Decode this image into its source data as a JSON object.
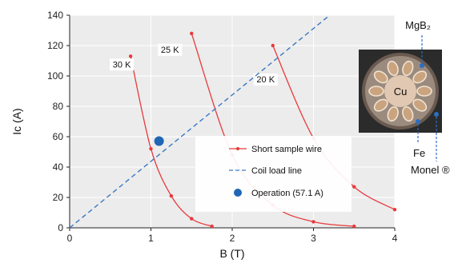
{
  "chart_data": {
    "type": "line",
    "xlabel": "B (T)",
    "ylabel": "Ic (A)",
    "xlim": [
      0,
      4
    ],
    "ylim": [
      0,
      140
    ],
    "x_ticks": [
      "0",
      "1",
      "2",
      "3",
      "4"
    ],
    "y_ticks": [
      "0",
      "20",
      "40",
      "60",
      "80",
      "100",
      "120",
      "140"
    ],
    "grid": true,
    "legend_position": "bottom-right",
    "series": [
      {
        "name": "Short sample wire",
        "label": "30 K",
        "role": "short-sample",
        "x": [
          0.75,
          1.0,
          1.25,
          1.5,
          1.75
        ],
        "y": [
          113,
          52,
          21,
          6,
          1
        ]
      },
      {
        "name": "Short sample wire",
        "label": "25 K",
        "role": "short-sample",
        "x": [
          1.5,
          2.0,
          2.5,
          3.0,
          3.5
        ],
        "y": [
          128,
          48,
          15,
          4,
          1
        ]
      },
      {
        "name": "Short sample wire",
        "label": "20 K",
        "role": "short-sample",
        "x": [
          2.5,
          3.0,
          3.5,
          4.0
        ],
        "y": [
          120,
          59,
          27,
          12
        ]
      },
      {
        "name": "Coil load line",
        "role": "load-line",
        "x": [
          0,
          3.2
        ],
        "y": [
          0,
          140
        ]
      },
      {
        "name": "Operation (57.1 A)",
        "role": "operation",
        "x": [
          1.1
        ],
        "y": [
          57.1
        ]
      }
    ],
    "legend": [
      {
        "label": "Short sample wire",
        "style": "line-marker",
        "color": "#e8393c"
      },
      {
        "label": "Coil load line",
        "style": "dashed",
        "color": "#3b78c4"
      },
      {
        "label": "Operation (57.1 A)",
        "style": "dot",
        "color": "#1f66b5"
      }
    ],
    "colors": {
      "short_sample": "#e8393c",
      "load_line": "#3b78c4",
      "operation": "#1f66b5"
    }
  },
  "inset": {
    "core_label": "Cu",
    "labels": {
      "mgb2": "MgB₂",
      "fe": "Fe",
      "monel": "Monel ®"
    }
  }
}
